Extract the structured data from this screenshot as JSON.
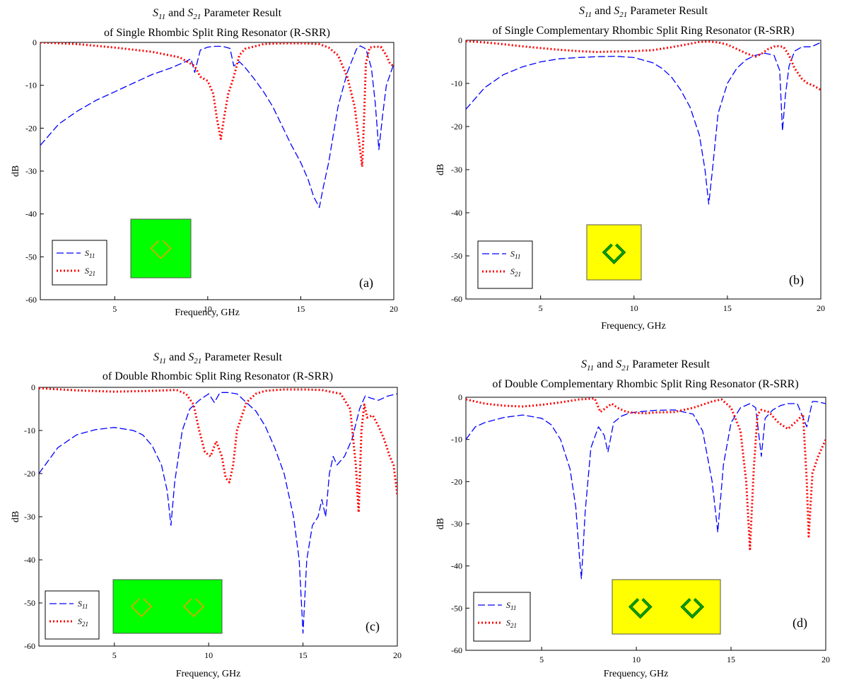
{
  "colors": {
    "s11": "#0000ff",
    "s21": "#ff0000",
    "green_inset": "#00ff00",
    "yellow_inset": "#ffff00",
    "orange_ring": "#ff9900",
    "green_ring": "#00aa00"
  },
  "chart_data": [
    {
      "type": "line",
      "title_line1_parts": [
        "S",
        "11",
        " and ",
        "S",
        "21",
        " Parameter Result"
      ],
      "title_line2": "of Single Rhombic Split Ring Resonator (R-SRR)",
      "xlabel": "Frequency, GHz",
      "ylabel": "dB",
      "xlim": [
        1,
        20
      ],
      "ylim": [
        -60,
        0
      ],
      "xticks": [
        5,
        10,
        15,
        20
      ],
      "yticks": [
        0,
        -10,
        -20,
        -30,
        -40,
        -50,
        -60
      ],
      "legend": [
        {
          "name": "S",
          "sub": "11"
        },
        {
          "name": "S",
          "sub": "21"
        }
      ],
      "legend_location": "bottom-left",
      "panel_label": "(a)",
      "inset": {
        "color": "green",
        "rings": 1
      },
      "series": [
        {
          "name": "S11",
          "style": "dashed",
          "x": [
            1,
            2,
            3,
            4,
            5,
            6,
            7,
            8,
            8.8,
            9.1,
            9.3,
            9.6,
            10.0,
            10.4,
            10.8,
            11.2,
            11.4,
            11.7,
            12.0,
            12.5,
            13.0,
            13.5,
            14.0,
            14.5,
            15.0,
            15.4,
            15.7,
            16.0,
            16.2,
            16.5,
            17.0,
            17.5,
            18.0,
            18.2,
            18.5,
            18.8,
            19.0,
            19.2,
            19.4,
            19.6,
            20
          ],
          "y": [
            -24,
            -19,
            -16,
            -13.5,
            -11.5,
            -9.5,
            -7.5,
            -6,
            -4.5,
            -3.8,
            -7,
            -1.8,
            -1.1,
            -0.9,
            -0.9,
            -1.4,
            -5.5,
            -4.5,
            -5.8,
            -8.5,
            -11.5,
            -15,
            -19.5,
            -24,
            -28,
            -32,
            -36,
            -38.5,
            -34,
            -28,
            -15,
            -7,
            -1.5,
            -0.8,
            -1.5,
            -6,
            -14,
            -25,
            -17,
            -10,
            -5
          ]
        },
        {
          "name": "S21",
          "style": "dotted",
          "x": [
            1,
            3,
            5,
            7,
            8.5,
            9.3,
            9.6,
            10.0,
            10.3,
            10.5,
            10.7,
            10.9,
            11.1,
            11.4,
            11.7,
            12.0,
            13,
            14,
            15,
            16,
            16.5,
            17,
            17.5,
            17.9,
            18.1,
            18.3,
            18.4,
            18.5,
            18.7,
            19.0,
            19.3,
            19.6,
            19.8,
            20
          ],
          "y": [
            0,
            -0.4,
            -1.2,
            -2.2,
            -3.5,
            -5.5,
            -8,
            -9,
            -12,
            -18,
            -22.5,
            -17,
            -12,
            -8,
            -3,
            -1.5,
            -0.4,
            -0.2,
            -0.2,
            -0.4,
            -1.2,
            -3,
            -8,
            -15,
            -22,
            -29,
            -18,
            -5,
            -1.2,
            -1,
            -1,
            -3,
            -5,
            -5.5
          ]
        }
      ]
    },
    {
      "type": "line",
      "title_line1_parts": [
        "S",
        "11",
        " and ",
        "S",
        "21",
        " Parameter Result"
      ],
      "title_line2": "of Single Complementary Rhombic Split Ring Resonator (R-SRR)",
      "xlabel": "Frequency, GHz",
      "ylabel": "dB",
      "xlim": [
        1,
        20
      ],
      "ylim": [
        -60,
        0
      ],
      "xticks": [
        5,
        10,
        15,
        20
      ],
      "yticks": [
        0,
        -10,
        -20,
        -30,
        -40,
        -50,
        -60
      ],
      "legend": [
        {
          "name": "S",
          "sub": "11"
        },
        {
          "name": "S",
          "sub": "21"
        }
      ],
      "legend_location": "bottom-left",
      "panel_label": "(b)",
      "inset": {
        "color": "yellow",
        "rings": 1
      },
      "series": [
        {
          "name": "S11",
          "style": "dashed",
          "x": [
            1,
            2,
            3,
            4,
            5,
            6,
            7,
            8,
            9,
            10,
            11,
            11.5,
            12,
            12.5,
            13,
            13.5,
            13.8,
            14.0,
            14.2,
            14.5,
            15,
            15.5,
            16,
            16.5,
            17,
            17.5,
            17.8,
            17.95,
            18.1,
            18.3,
            18.6,
            19,
            19.5,
            20
          ],
          "y": [
            -16,
            -11,
            -8,
            -6.2,
            -5,
            -4.3,
            -4,
            -3.8,
            -3.7,
            -4,
            -5.2,
            -6.5,
            -8.5,
            -11.5,
            -15.5,
            -22,
            -30,
            -38,
            -30,
            -17,
            -10,
            -6.5,
            -4.5,
            -3.5,
            -3,
            -3.5,
            -7,
            -21,
            -13,
            -6,
            -2.5,
            -1.5,
            -1.5,
            -0.5
          ]
        },
        {
          "name": "S21",
          "style": "dotted",
          "x": [
            1,
            2,
            3,
            4,
            5,
            6,
            7,
            8,
            9,
            10,
            11,
            12,
            13,
            13.5,
            14,
            14.5,
            15,
            15.5,
            16,
            16.5,
            16.8,
            17.2,
            17.6,
            18,
            18.3,
            18.6,
            19,
            19.3,
            19.6,
            20
          ],
          "y": [
            -0.2,
            -0.5,
            -0.9,
            -1.4,
            -1.8,
            -2.2,
            -2.5,
            -2.7,
            -2.6,
            -2.5,
            -2.3,
            -1.6,
            -0.8,
            -0.4,
            -0.3,
            -0.5,
            -1,
            -2,
            -3,
            -3.8,
            -3.2,
            -2,
            -1.3,
            -1.5,
            -3.5,
            -6.5,
            -9,
            -10,
            -10.5,
            -11.5
          ]
        }
      ]
    },
    {
      "type": "line",
      "title_line1_parts": [
        "S",
        "11",
        " and ",
        "S",
        "21",
        " Parameter Result"
      ],
      "title_line2": "of Double Rhombic Split Ring Resonator (R-SRR)",
      "xlabel": "Frequency, GHz",
      "ylabel": "dB",
      "xlim": [
        1,
        20
      ],
      "ylim": [
        -60,
        0
      ],
      "xticks": [
        5,
        10,
        15,
        20
      ],
      "yticks": [
        0,
        -10,
        -20,
        -30,
        -40,
        -50,
        -60
      ],
      "legend": [
        {
          "name": "S",
          "sub": "11"
        },
        {
          "name": "S",
          "sub": "21"
        }
      ],
      "legend_location": "bottom-left",
      "panel_label": "(c)",
      "inset": {
        "color": "green",
        "rings": 2
      },
      "series": [
        {
          "name": "S11",
          "style": "dashed",
          "x": [
            1,
            2,
            3,
            4,
            5,
            6,
            6.5,
            7,
            7.5,
            7.8,
            8.0,
            8.2,
            8.6,
            9.0,
            9.5,
            10,
            10.3,
            10.6,
            11,
            11.5,
            12,
            12.5,
            13,
            13.5,
            14,
            14.5,
            14.8,
            15.0,
            15.2,
            15.5,
            15.8,
            16.0,
            16.2,
            16.4,
            16.6,
            16.8,
            17.2,
            17.6,
            18.0,
            18.3,
            18.6,
            19,
            19.5,
            20
          ],
          "y": [
            -20,
            -14,
            -11,
            -9.8,
            -9.3,
            -10,
            -11,
            -13.5,
            -18,
            -24,
            -32,
            -22,
            -10,
            -5,
            -3,
            -1.5,
            -3.5,
            -1.2,
            -1.2,
            -1.5,
            -3.5,
            -5.5,
            -9,
            -14,
            -20,
            -30,
            -40,
            -57,
            -40,
            -32,
            -30,
            -26,
            -30,
            -20,
            -16,
            -18,
            -16,
            -12,
            -5,
            -2,
            -2.5,
            -3,
            -2,
            -1.5
          ]
        },
        {
          "name": "S21",
          "style": "dotted",
          "x": [
            1,
            3,
            5,
            7,
            8.3,
            8.8,
            9.2,
            9.5,
            9.8,
            10.1,
            10.4,
            10.7,
            10.9,
            11.1,
            11.3,
            11.5,
            12.0,
            12.5,
            13,
            14,
            15,
            16,
            17,
            17.5,
            17.8,
            17.95,
            18.1,
            18.25,
            18.4,
            18.7,
            19,
            19.3,
            19.6,
            19.8,
            20
          ],
          "y": [
            -0.2,
            -0.7,
            -1,
            -0.8,
            -0.6,
            -1.5,
            -4,
            -10,
            -15,
            -16,
            -12.5,
            -16,
            -21,
            -22,
            -18,
            -10,
            -3.5,
            -1.5,
            -0.8,
            -0.5,
            -0.5,
            -0.6,
            -1.5,
            -5,
            -18,
            -29,
            -10,
            -4,
            -7,
            -6.5,
            -9,
            -12,
            -16,
            -18,
            -25
          ]
        }
      ]
    },
    {
      "type": "line",
      "title_line1_parts": [
        "S",
        "11",
        " and ",
        "S",
        "21",
        " Parameter Result"
      ],
      "title_line2": "of Double Complementary Rhombic Split Ring Resonator (R-SRR)",
      "xlabel": "Frequency, GHz",
      "ylabel": "dB",
      "xlim": [
        1,
        20
      ],
      "ylim": [
        -60,
        0
      ],
      "xticks": [
        5,
        10,
        15,
        20
      ],
      "yticks": [
        0,
        -10,
        -20,
        -30,
        -40,
        -50,
        -60
      ],
      "legend": [
        {
          "name": "S",
          "sub": "11"
        },
        {
          "name": "S",
          "sub": "21"
        }
      ],
      "legend_location": "bottom-left",
      "panel_label": "(d)",
      "inset": {
        "color": "yellow",
        "rings": 2
      },
      "series": [
        {
          "name": "S11",
          "style": "dashed",
          "x": [
            1,
            1.5,
            2,
            3,
            4,
            5,
            5.5,
            6,
            6.5,
            6.8,
            7.0,
            7.1,
            7.3,
            7.6,
            8.0,
            8.3,
            8.5,
            8.8,
            9.2,
            9.6,
            10,
            10.5,
            11,
            12,
            13,
            13.5,
            14,
            14.3,
            14.6,
            15,
            15.5,
            16,
            16.3,
            16.6,
            16.8,
            17.2,
            17.6,
            18,
            18.5,
            19,
            19.3,
            19.5,
            20
          ],
          "y": [
            -10,
            -7,
            -6,
            -4.8,
            -4.2,
            -5,
            -6.5,
            -10,
            -17,
            -26,
            -38,
            -43,
            -27,
            -12,
            -7,
            -9,
            -13,
            -6,
            -4.5,
            -3.8,
            -3.5,
            -3.3,
            -3.1,
            -3,
            -4,
            -8,
            -20,
            -32,
            -16,
            -6,
            -2.5,
            -1.5,
            -2.5,
            -14,
            -5,
            -3,
            -2,
            -1.5,
            -1.5,
            -7,
            -1,
            -1,
            -1.5
          ]
        },
        {
          "name": "S21",
          "style": "dotted",
          "x": [
            1,
            2,
            3,
            4,
            5,
            6,
            7,
            7.8,
            8.1,
            8.4,
            8.7,
            9,
            9.5,
            10,
            10.5,
            11,
            12,
            13,
            14,
            14.5,
            15,
            15.5,
            15.8,
            16.0,
            16.2,
            16.4,
            16.6,
            17,
            17.5,
            18,
            18.5,
            18.8,
            19.0,
            19.1,
            19.3,
            19.6,
            20
          ],
          "y": [
            -0.5,
            -1.5,
            -2,
            -2.2,
            -1.8,
            -1.2,
            -0.5,
            -0.3,
            -3.5,
            -2.5,
            -1.5,
            -2.5,
            -3.5,
            -3.7,
            -3.8,
            -3.6,
            -3.5,
            -2.5,
            -1,
            -0.5,
            -2.5,
            -8,
            -20,
            -36,
            -17,
            -4,
            -3,
            -3.5,
            -6,
            -7.5,
            -5.5,
            -4,
            -20,
            -33,
            -18,
            -14,
            -10
          ]
        }
      ]
    }
  ]
}
